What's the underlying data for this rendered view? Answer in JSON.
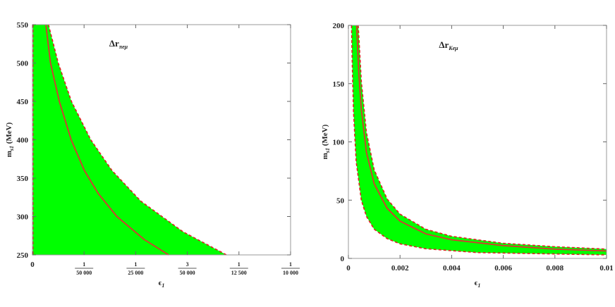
{
  "chart_data": [
    {
      "type": "area",
      "title": "Δr",
      "title_subscript": "πeμ",
      "xlabel": "ϵ",
      "xlabel_subscript": "1",
      "ylabel": "m",
      "ylabel_subscript": "s1",
      "ylabel_unit": "(MeV)",
      "xlim": [
        0,
        0.0001
      ],
      "ylim": [
        250,
        550
      ],
      "xticks": [
        {
          "value": 0,
          "label": "0"
        },
        {
          "value": 2e-05,
          "num": "1",
          "den": "50 000"
        },
        {
          "value": 4e-05,
          "num": "1",
          "den": "25 000"
        },
        {
          "value": 6e-05,
          "num": "3",
          "den": "50 000"
        },
        {
          "value": 8e-05,
          "num": "1",
          "den": "12 500"
        },
        {
          "value": 0.0001,
          "num": "1",
          "den": "10 000"
        }
      ],
      "yticks": [
        250,
        300,
        350,
        400,
        450,
        500,
        550
      ],
      "central_curve": {
        "m": [
          250,
          270,
          300,
          330,
          360,
          400,
          450,
          500,
          550
        ],
        "eps": [
          5.28e-05,
          4.33e-05,
          3.27e-05,
          2.55e-05,
          2.01e-05,
          1.5e-05,
          1.04e-05,
          7e-06,
          5.2e-06
        ]
      },
      "upper_boundary": {
        "m": [
          250,
          280,
          320,
          360,
          400,
          450,
          500,
          550
        ],
        "eps": [
          7.52e-05,
          5.84e-05,
          4.2e-05,
          3.08e-05,
          2.26e-05,
          1.51e-05,
          1e-05,
          6.2e-06
        ]
      },
      "lower_boundary": {
        "m": [
          250,
          550
        ],
        "eps": [
          2e-07,
          2e-07
        ]
      },
      "fill_color": "#00ff00",
      "central_color": "#dd3333",
      "boundary_color": "#dd2222"
    },
    {
      "type": "area",
      "title": "Δr",
      "title_subscript": "Keμ",
      "xlabel": "ϵ",
      "xlabel_subscript": "1",
      "ylabel": "m",
      "ylabel_subscript": "s1",
      "ylabel_unit": "(MeV)",
      "xlim": [
        0,
        0.01
      ],
      "ylim": [
        0,
        200
      ],
      "xticks": [
        0,
        0.002,
        0.004,
        0.006,
        0.008,
        0.01
      ],
      "xtick_labels": [
        "0",
        "0.002",
        "0.004",
        "0.006",
        "0.008",
        "0.01"
      ],
      "yticks": [
        0,
        50,
        100,
        150,
        200
      ],
      "central_curve": {
        "eps": [
          0.00032,
          0.0004,
          0.0005,
          0.0007,
          0.001,
          0.0015,
          0.002,
          0.003,
          0.004,
          0.006,
          0.008,
          0.01
        ],
        "m": [
          200,
          160,
          128,
          91,
          64,
          43,
          32,
          21,
          16,
          11,
          8,
          6.4
        ]
      },
      "upper_boundary": {
        "eps": [
          0.00038,
          0.0005,
          0.0007,
          0.001,
          0.0015,
          0.002,
          0.003,
          0.004,
          0.006,
          0.008,
          0.01
        ],
        "m": [
          200,
          152,
          108,
          76,
          51,
          38,
          25,
          19,
          13,
          10,
          8
        ]
      },
      "lower_boundary": {
        "eps": [
          0.00012,
          0.00015,
          0.0002,
          0.0003,
          0.0005,
          0.0007,
          0.001,
          0.0015,
          0.002,
          0.003,
          0.005,
          0.01
        ],
        "m": [
          200,
          166,
          125,
          83,
          50,
          36,
          25,
          17,
          12.5,
          8.3,
          5,
          3
        ]
      },
      "fill_color": "#00ff00",
      "central_color": "#dd3333",
      "boundary_color": "#dd2222"
    }
  ]
}
